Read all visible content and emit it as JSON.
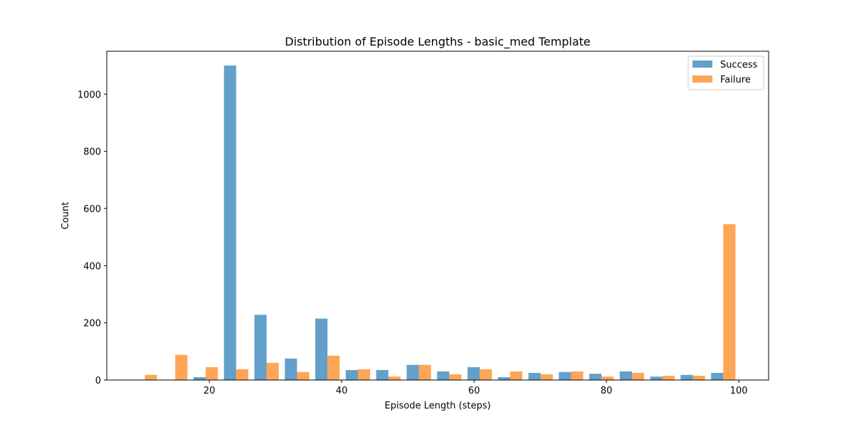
{
  "chart_data": {
    "type": "bar",
    "title": "Distribution of Episode Lengths - basic_med Template",
    "xlabel": "Episode Length (steps)",
    "ylabel": "Count",
    "x": [
      10.25,
      14.85,
      19.45,
      24.05,
      28.65,
      33.25,
      37.85,
      42.45,
      47.05,
      51.65,
      56.25,
      60.85,
      65.45,
      70.05,
      74.65,
      79.25,
      83.85,
      88.45,
      93.05,
      97.65
    ],
    "xlim": [
      4.5,
      104.5
    ],
    "ylim": [
      0,
      1150
    ],
    "xticks": [
      20,
      40,
      60,
      80,
      100
    ],
    "yticks": [
      0,
      200,
      400,
      600,
      800,
      1000
    ],
    "grid": false,
    "legend_position": "top-right",
    "series": [
      {
        "name": "Success",
        "color": "#1f77b4",
        "values": [
          0,
          0,
          10,
          1100,
          228,
          75,
          215,
          35,
          35,
          53,
          30,
          45,
          10,
          25,
          28,
          22,
          30,
          12,
          18,
          25
        ]
      },
      {
        "name": "Failure",
        "color": "#ff7f0e",
        "values": [
          18,
          88,
          45,
          38,
          60,
          28,
          85,
          38,
          12,
          53,
          20,
          38,
          30,
          20,
          30,
          12,
          25,
          15,
          15,
          545
        ]
      }
    ]
  }
}
